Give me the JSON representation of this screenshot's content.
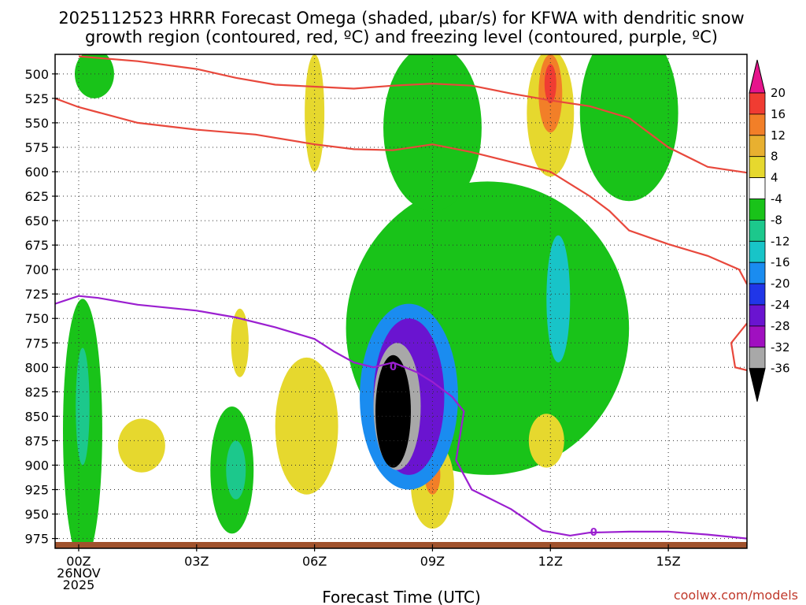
{
  "chart_data": {
    "type": "heatmap",
    "title": "2025112523 HRRR Forecast Omega (shaded, μbar/s) for KFWA with dendritic snow growth region (contoured, red, ºC) and freezing level (contoured, purple, ºC)",
    "title_lines": [
      "2025112523 HRRR Forecast Omega (shaded, μbar/s) for KFWA with dendritic snow",
      "growth region (contoured, red, ºC) and freezing level (contoured, purple, ºC)"
    ],
    "xlabel": "Forecast Time (UTC)",
    "ylabel": "",
    "credit": "coolwx.com/models",
    "x_tick_labels": [
      {
        "hour": 0,
        "lines": [
          "00Z",
          "26NOV",
          "2025"
        ]
      },
      {
        "hour": 3,
        "lines": [
          "03Z"
        ]
      },
      {
        "hour": 6,
        "lines": [
          "06Z"
        ]
      },
      {
        "hour": 9,
        "lines": [
          "09Z"
        ]
      },
      {
        "hour": 12,
        "lines": [
          "12Z"
        ]
      },
      {
        "hour": 15,
        "lines": [
          "15Z"
        ]
      }
    ],
    "xlim": [
      -0.6,
      17.0
    ],
    "y_ticks": [
      500,
      525,
      550,
      575,
      600,
      625,
      650,
      675,
      700,
      725,
      750,
      775,
      800,
      825,
      850,
      875,
      900,
      925,
      950,
      975
    ],
    "ylim": [
      480,
      985
    ],
    "grid": true,
    "colorbar": {
      "label_values": [
        "20",
        "16",
        "12",
        "8",
        "4",
        "-4",
        "-8",
        "-12",
        "-16",
        "-20",
        "-24",
        "-28",
        "-32",
        "-36"
      ],
      "bands": [
        {
          "lo": 16,
          "hi": 20,
          "color": "#f03c32"
        },
        {
          "lo": 12,
          "hi": 16,
          "color": "#f27f28"
        },
        {
          "lo": 8,
          "hi": 12,
          "color": "#e8b030"
        },
        {
          "lo": 4,
          "hi": 8,
          "color": "#e6d82e"
        },
        {
          "lo": -4,
          "hi": 4,
          "color": "#ffffff"
        },
        {
          "lo": -8,
          "hi": -4,
          "color": "#19c319"
        },
        {
          "lo": -12,
          "hi": -8,
          "color": "#1cc88c"
        },
        {
          "lo": -16,
          "hi": -12,
          "color": "#18c4c8"
        },
        {
          "lo": -20,
          "hi": -16,
          "color": "#1a8cf0"
        },
        {
          "lo": -24,
          "hi": -20,
          "color": "#2036e8"
        },
        {
          "lo": -28,
          "hi": -24,
          "color": "#6a14d0"
        },
        {
          "lo": -32,
          "hi": -28,
          "color": "#a010c0"
        },
        {
          "lo": -36,
          "hi": -32,
          "color": "#a8a8a8"
        }
      ],
      "top_extension_color": "#e6148c",
      "bottom_extension_color": "#000000"
    },
    "omega_features": [
      {
        "name": "downdraft-cell-upper-06z",
        "value": 4,
        "hour": 6.0,
        "pres": 540,
        "w_hr": 0.5,
        "h_mb": 120
      },
      {
        "name": "updraft-left-00z",
        "value": -6,
        "hour": 0.1,
        "pres": 865,
        "w_hr": 1.0,
        "h_mb": 270
      },
      {
        "name": "updraft-left-00z-core",
        "value": -10,
        "hour": 0.1,
        "pres": 840,
        "w_hr": 0.35,
        "h_mb": 120
      },
      {
        "name": "updraft-top-00z",
        "value": -6,
        "hour": 0.4,
        "pres": 500,
        "w_hr": 1.0,
        "h_mb": 50
      },
      {
        "name": "downdraft-01z",
        "value": 4,
        "hour": 1.6,
        "pres": 880,
        "w_hr": 1.2,
        "h_mb": 55
      },
      {
        "name": "updraft-04z",
        "value": -6,
        "hour": 3.9,
        "pres": 905,
        "w_hr": 1.1,
        "h_mb": 130
      },
      {
        "name": "updraft-04z-core",
        "value": -10,
        "hour": 4.0,
        "pres": 905,
        "w_hr": 0.5,
        "h_mb": 60
      },
      {
        "name": "downdraft-04z",
        "value": 4,
        "hour": 4.1,
        "pres": 775,
        "w_hr": 0.45,
        "h_mb": 70
      },
      {
        "name": "downdraft-06z",
        "value": 4,
        "hour": 5.8,
        "pres": 860,
        "w_hr": 1.6,
        "h_mb": 140
      },
      {
        "name": "updraft-broad-10z",
        "value": -6,
        "hour": 10.4,
        "pres": 760,
        "w_hr": 7.2,
        "h_mb": 300
      },
      {
        "name": "updraft-upper-09z",
        "value": -6,
        "hour": 9.0,
        "pres": 555,
        "w_hr": 2.5,
        "h_mb": 170
      },
      {
        "name": "updraft-upper-14z",
        "value": -6,
        "hour": 14.0,
        "pres": 540,
        "w_hr": 2.5,
        "h_mb": 180
      },
      {
        "name": "updraft-cyan-12z",
        "value": -14,
        "hour": 12.2,
        "pres": 730,
        "w_hr": 0.6,
        "h_mb": 130
      },
      {
        "name": "downdraft-upper-12z",
        "value": 6,
        "hour": 12.0,
        "pres": 540,
        "w_hr": 1.2,
        "h_mb": 130
      },
      {
        "name": "downdraft-upper-12z-core",
        "value": 14,
        "hour": 12.0,
        "pres": 520,
        "w_hr": 0.6,
        "h_mb": 80
      },
      {
        "name": "downdraft-upper-12z-peak",
        "value": 18,
        "hour": 12.0,
        "pres": 510,
        "w_hr": 0.3,
        "h_mb": 40
      },
      {
        "name": "downdraft-09z",
        "value": 6,
        "hour": 9.0,
        "pres": 920,
        "w_hr": 1.1,
        "h_mb": 90
      },
      {
        "name": "downdraft-09z-core",
        "value": 14,
        "hour": 9.0,
        "pres": 910,
        "w_hr": 0.4,
        "h_mb": 40
      },
      {
        "name": "downdraft-12z",
        "value": 6,
        "hour": 11.9,
        "pres": 875,
        "w_hr": 0.9,
        "h_mb": 55
      },
      {
        "name": "updraft-core-08z-outer",
        "value": -18,
        "hour": 8.4,
        "pres": 830,
        "w_hr": 2.5,
        "h_mb": 190
      },
      {
        "name": "updraft-core-08z-mid",
        "value": -26,
        "hour": 8.4,
        "pres": 830,
        "w_hr": 1.8,
        "h_mb": 160
      },
      {
        "name": "updraft-core-08z-inner",
        "value": -34,
        "hour": 8.1,
        "pres": 840,
        "w_hr": 1.2,
        "h_mb": 130
      },
      {
        "name": "updraft-core-08z-max",
        "value": -40,
        "hour": 8.0,
        "pres": 845,
        "w_hr": 0.9,
        "h_mb": 115
      }
    ],
    "series": [
      {
        "name": "dendritic snow growth region (red)",
        "color": "#e8483c",
        "contours": [
          [
            [
              0.0,
              482
            ],
            [
              1.5,
              487
            ],
            [
              3.0,
              495
            ],
            [
              4.0,
              504
            ],
            [
              5.0,
              511
            ],
            [
              6.0,
              513
            ],
            [
              7.0,
              515
            ],
            [
              8.0,
              512
            ],
            [
              9.0,
              510
            ],
            [
              10.0,
              512
            ],
            [
              11.0,
              520
            ],
            [
              12.0,
              527
            ],
            [
              13.0,
              533
            ],
            [
              14.0,
              545
            ],
            [
              15.0,
              575
            ],
            [
              16.0,
              595
            ],
            [
              17.0,
              601
            ]
          ],
          [
            [
              -0.6,
              525
            ],
            [
              0.0,
              534
            ],
            [
              1.5,
              550
            ],
            [
              3.0,
              557
            ],
            [
              4.5,
              562
            ],
            [
              6.0,
              572
            ],
            [
              7.0,
              577
            ],
            [
              8.0,
              578
            ],
            [
              9.0,
              572
            ],
            [
              10.0,
              580
            ],
            [
              11.0,
              590
            ],
            [
              12.0,
              600
            ],
            [
              12.6,
              615
            ],
            [
              13.0,
              625
            ],
            [
              13.5,
              640
            ],
            [
              14.0,
              660
            ],
            [
              15.0,
              674
            ],
            [
              16.0,
              686
            ],
            [
              16.8,
              700
            ],
            [
              17.0,
              715
            ]
          ],
          [
            [
              17.0,
              755
            ],
            [
              16.6,
              775
            ],
            [
              16.7,
              800
            ],
            [
              17.0,
              803
            ]
          ]
        ]
      },
      {
        "name": "freezing level (purple)",
        "color": "#9b1fd0",
        "contours": [
          [
            [
              -0.6,
              735
            ],
            [
              0.0,
              727
            ],
            [
              0.5,
              729
            ],
            [
              1.5,
              736
            ],
            [
              3.0,
              742
            ],
            [
              4.0,
              749
            ],
            [
              5.0,
              759
            ],
            [
              6.0,
              771
            ],
            [
              6.5,
              784
            ],
            [
              7.0,
              795
            ],
            [
              7.5,
              800
            ],
            [
              8.0,
              795
            ],
            [
              8.6,
              805
            ],
            [
              9.0,
              815
            ],
            [
              9.5,
              830
            ],
            [
              9.8,
              845
            ],
            [
              9.7,
              870
            ],
            [
              9.6,
              895
            ],
            [
              10.0,
              925
            ],
            [
              10.5,
              935
            ],
            [
              11.0,
              945
            ],
            [
              11.8,
              967
            ],
            [
              12.5,
              972
            ],
            [
              13.0,
              969
            ],
            [
              14.0,
              968
            ],
            [
              15.0,
              968
            ],
            [
              16.0,
              971
            ],
            [
              17.0,
              975
            ]
          ]
        ],
        "labels": [
          {
            "hour": 8.0,
            "pres": 799,
            "text": "0"
          },
          {
            "hour": 13.1,
            "pres": 968,
            "text": "0"
          }
        ]
      }
    ],
    "surface_color": "#a0522d"
  }
}
